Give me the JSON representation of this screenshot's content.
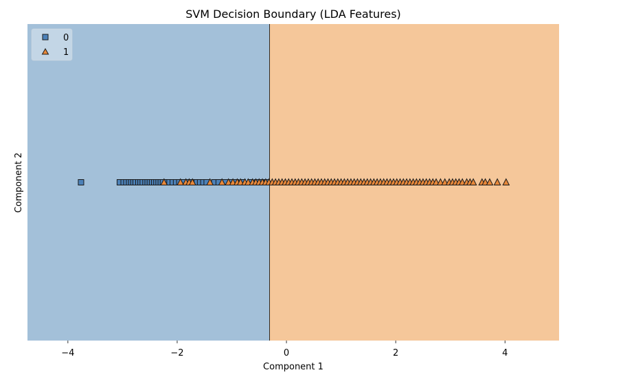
{
  "chart_data": {
    "type": "scatter",
    "title": "SVM Decision Boundary (LDA Features)",
    "xlabel": "Component 1",
    "ylabel": "Component 2",
    "xlim": [
      -4.74,
      4.99
    ],
    "ylim": [
      -1,
      1
    ],
    "xticks": [
      -4,
      -2,
      0,
      2,
      4
    ],
    "xtick_labels": [
      "−4",
      "−2",
      "0",
      "2",
      "4"
    ],
    "yticks": [],
    "grid": false,
    "legend": {
      "position": "upper left",
      "entries": [
        {
          "label": "0",
          "marker": "square",
          "color": "#4c81b8"
        },
        {
          "label": "1",
          "marker": "triangle",
          "color": "#e8883a"
        }
      ]
    },
    "decision_regions": [
      {
        "class": "0",
        "x_from": -4.74,
        "x_to": -0.31,
        "color": "#a3c0d9"
      },
      {
        "class": "1",
        "x_from": -0.31,
        "x_to": 4.99,
        "color": "#f5c79a"
      }
    ],
    "decision_boundary_x": -0.31,
    "series": [
      {
        "name": "0",
        "marker": "square",
        "color": "#4c81b8",
        "y": 0,
        "x": [
          -3.76,
          -3.05,
          -2.98,
          -2.93,
          -2.88,
          -2.84,
          -2.8,
          -2.76,
          -2.71,
          -2.67,
          -2.63,
          -2.58,
          -2.54,
          -2.5,
          -2.46,
          -2.42,
          -2.38,
          -2.34,
          -2.3,
          -2.26,
          -2.2,
          -2.14,
          -2.08,
          -2.02,
          -1.96,
          -1.88,
          -1.8,
          -1.72,
          -1.64,
          -1.58,
          -1.52,
          -1.46,
          -1.32,
          -1.24,
          -1.12,
          -1.02,
          -0.92,
          -0.8,
          -0.66,
          -0.54,
          -0.44,
          -0.36
        ]
      },
      {
        "name": "1",
        "marker": "triangle",
        "color": "#e8883a",
        "y": 0,
        "x": [
          -2.24,
          -1.94,
          -1.84,
          -1.78,
          -1.72,
          -1.4,
          -1.18,
          -1.06,
          -0.98,
          -0.9,
          -0.84,
          -0.76,
          -0.7,
          -0.62,
          -0.56,
          -0.5,
          -0.44,
          -0.38,
          -0.32,
          -0.26,
          -0.2,
          -0.14,
          -0.08,
          -0.02,
          0.04,
          0.1,
          0.16,
          0.22,
          0.28,
          0.34,
          0.4,
          0.46,
          0.52,
          0.58,
          0.64,
          0.7,
          0.76,
          0.82,
          0.88,
          0.94,
          1.0,
          1.06,
          1.12,
          1.18,
          1.24,
          1.3,
          1.36,
          1.42,
          1.48,
          1.54,
          1.6,
          1.66,
          1.72,
          1.78,
          1.84,
          1.9,
          1.96,
          2.02,
          2.08,
          2.14,
          2.2,
          2.26,
          2.32,
          2.38,
          2.44,
          2.5,
          2.56,
          2.62,
          2.68,
          2.74,
          2.82,
          2.9,
          2.98,
          3.04,
          3.1,
          3.16,
          3.22,
          3.3,
          3.36,
          3.42,
          3.58,
          3.64,
          3.72,
          3.86,
          4.02
        ]
      }
    ]
  }
}
